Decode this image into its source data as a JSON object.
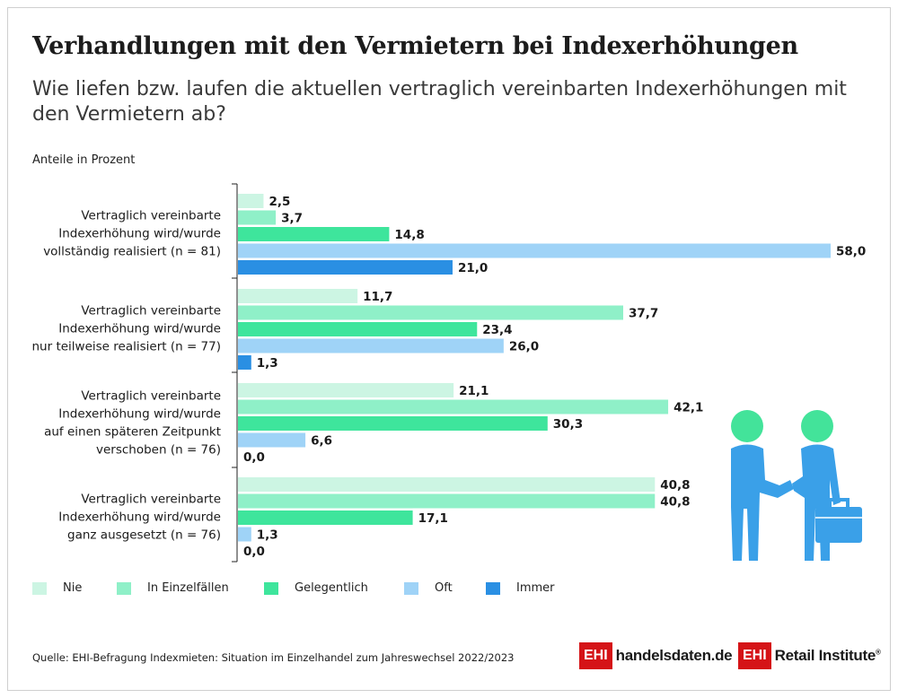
{
  "title": "Verhandlungen mit den Vermietern bei Indexerhöhungen",
  "subtitle": "Wie liefen bzw. laufen die aktuellen vertraglich vereinbarten Indexerhöhungen mit den Vermietern ab?",
  "unit_label": "Anteile in Prozent",
  "source": "Quelle: EHI-Befragung Indexmieten: Situation im Einzelhandel zum Jahreswechsel 2022/2023",
  "logos": {
    "logo1_box": "EHI",
    "logo1_text": "handelsdaten.de",
    "logo2_box": "EHI",
    "logo2_text": "Retail Institute",
    "logo2_mark": "®"
  },
  "illustration": "handshake-icon",
  "colors": {
    "nie": "#ccf5e3",
    "in_einzelfaellen": "#8ff0c8",
    "gelegentlich": "#3ee59c",
    "oft": "#9fd3f7",
    "immer": "#2a8fe3",
    "icon": "#3aa0e8",
    "icon_head": "#43e39a"
  },
  "chart_data": {
    "type": "bar",
    "orientation": "horizontal",
    "grouped": true,
    "unit": "Anteile in Prozent",
    "categories": [
      [
        "Vertraglich vereinbarte",
        "Indexerhöhung wird/wurde",
        "vollständig realisiert (n = 81)"
      ],
      [
        "Vertraglich vereinbarte",
        "Indexerhöhung wird/wurde",
        "nur teilweise realisiert (n = 77)"
      ],
      [
        "Vertraglich vereinbarte",
        "Indexerhöhung wird/wurde",
        "auf einen späteren Zeitpunkt",
        "verschoben (n = 76)"
      ],
      [
        "Vertraglich vereinbarte",
        "Indexerhöhung wird/wurde",
        "ganz ausgesetzt (n = 76)"
      ]
    ],
    "series": [
      {
        "name": "Nie",
        "color": "#ccf5e3",
        "values": [
          2.5,
          11.7,
          21.1,
          40.8
        ]
      },
      {
        "name": "In Einzelfällen",
        "color": "#8ff0c8",
        "values": [
          3.7,
          37.7,
          42.1,
          40.8
        ]
      },
      {
        "name": "Gelegentlich",
        "color": "#3ee59c",
        "values": [
          14.8,
          23.4,
          30.3,
          17.1
        ]
      },
      {
        "name": "Oft",
        "color": "#9fd3f7",
        "values": [
          58.0,
          26.0,
          6.6,
          1.3
        ]
      },
      {
        "name": "Immer",
        "color": "#2a8fe3",
        "values": [
          21.0,
          1.3,
          0.0,
          0.0
        ]
      }
    ],
    "xlim": [
      0,
      58.0
    ],
    "decimal_separator": ",",
    "legend_position": "bottom",
    "grid": false
  }
}
